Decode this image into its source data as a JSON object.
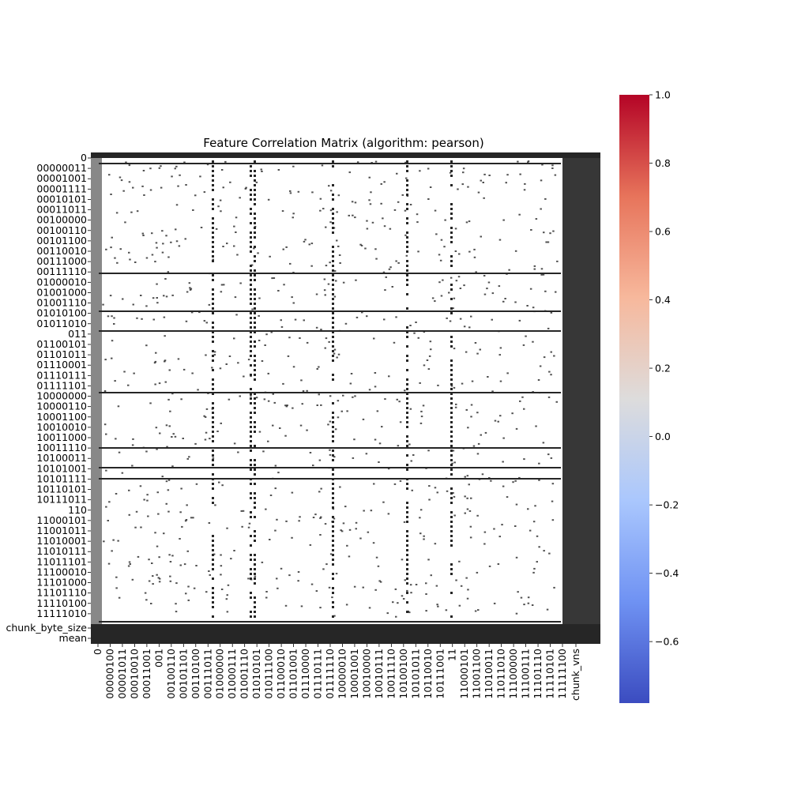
{
  "chart_data": {
    "type": "heatmap",
    "title": "Feature Correlation Matrix (algorithm: pearson)",
    "xlabel": "",
    "ylabel": "",
    "y_tick_labels": [
      "0",
      "00000011",
      "00001001",
      "00001111",
      "00010101",
      "00011011",
      "00100000",
      "00100110",
      "00101100",
      "00110010",
      "00111000",
      "00111110",
      "01000010",
      "01001000",
      "01001110",
      "01010100",
      "01011010",
      "011",
      "01100101",
      "01101011",
      "01110001",
      "01110111",
      "01111101",
      "10000000",
      "10000110",
      "10001100",
      "10010010",
      "10011000",
      "10011110",
      "10100011",
      "10101001",
      "10101111",
      "10110101",
      "10111011",
      "110",
      "11000101",
      "11001011",
      "11010001",
      "11010111",
      "11011101",
      "11100010",
      "11101000",
      "11101110",
      "11110100",
      "11111010",
      "chunk_byte_size",
      "mean"
    ],
    "x_tick_labels": [
      "0",
      "00000100",
      "00001011",
      "00010010",
      "00011001",
      "001",
      "00100110",
      "00101101",
      "00110100",
      "00111011",
      "01000000",
      "01000111",
      "01001110",
      "01010101",
      "01011100",
      "01100010",
      "01101001",
      "01110000",
      "01110111",
      "01111110",
      "10000010",
      "10001001",
      "10010000",
      "10010111",
      "10011110",
      "10100100",
      "10101011",
      "10110010",
      "10111001",
      "11",
      "11000101",
      "11001100",
      "11010011",
      "11011010",
      "11100000",
      "11100111",
      "11101110",
      "11110101",
      "11111100",
      "chunk_vns"
    ],
    "colorbar": {
      "cmap": "coolwarm",
      "vmin": -0.78,
      "vmax": 1.0,
      "ticks": [
        "1.0",
        "0.8",
        "0.6",
        "0.4",
        "0.2",
        "0.0",
        "−0.2",
        "−0.4",
        "−0.6"
      ],
      "colors": [
        "#3b4cc0",
        "#6f92f3",
        "#aac7fd",
        "#dddcdc",
        "#f7b89c",
        "#e7745b",
        "#b40426"
      ]
    },
    "cell_annotation_color": "#262626",
    "value_summary": "Cells mostly white (correlation near 0), densely overplotted with dark annotation text; full dark annotation bands along row/column 0 and the chunk_byte_size, mean and chunk_vns rows/columns; individual values not legible."
  }
}
